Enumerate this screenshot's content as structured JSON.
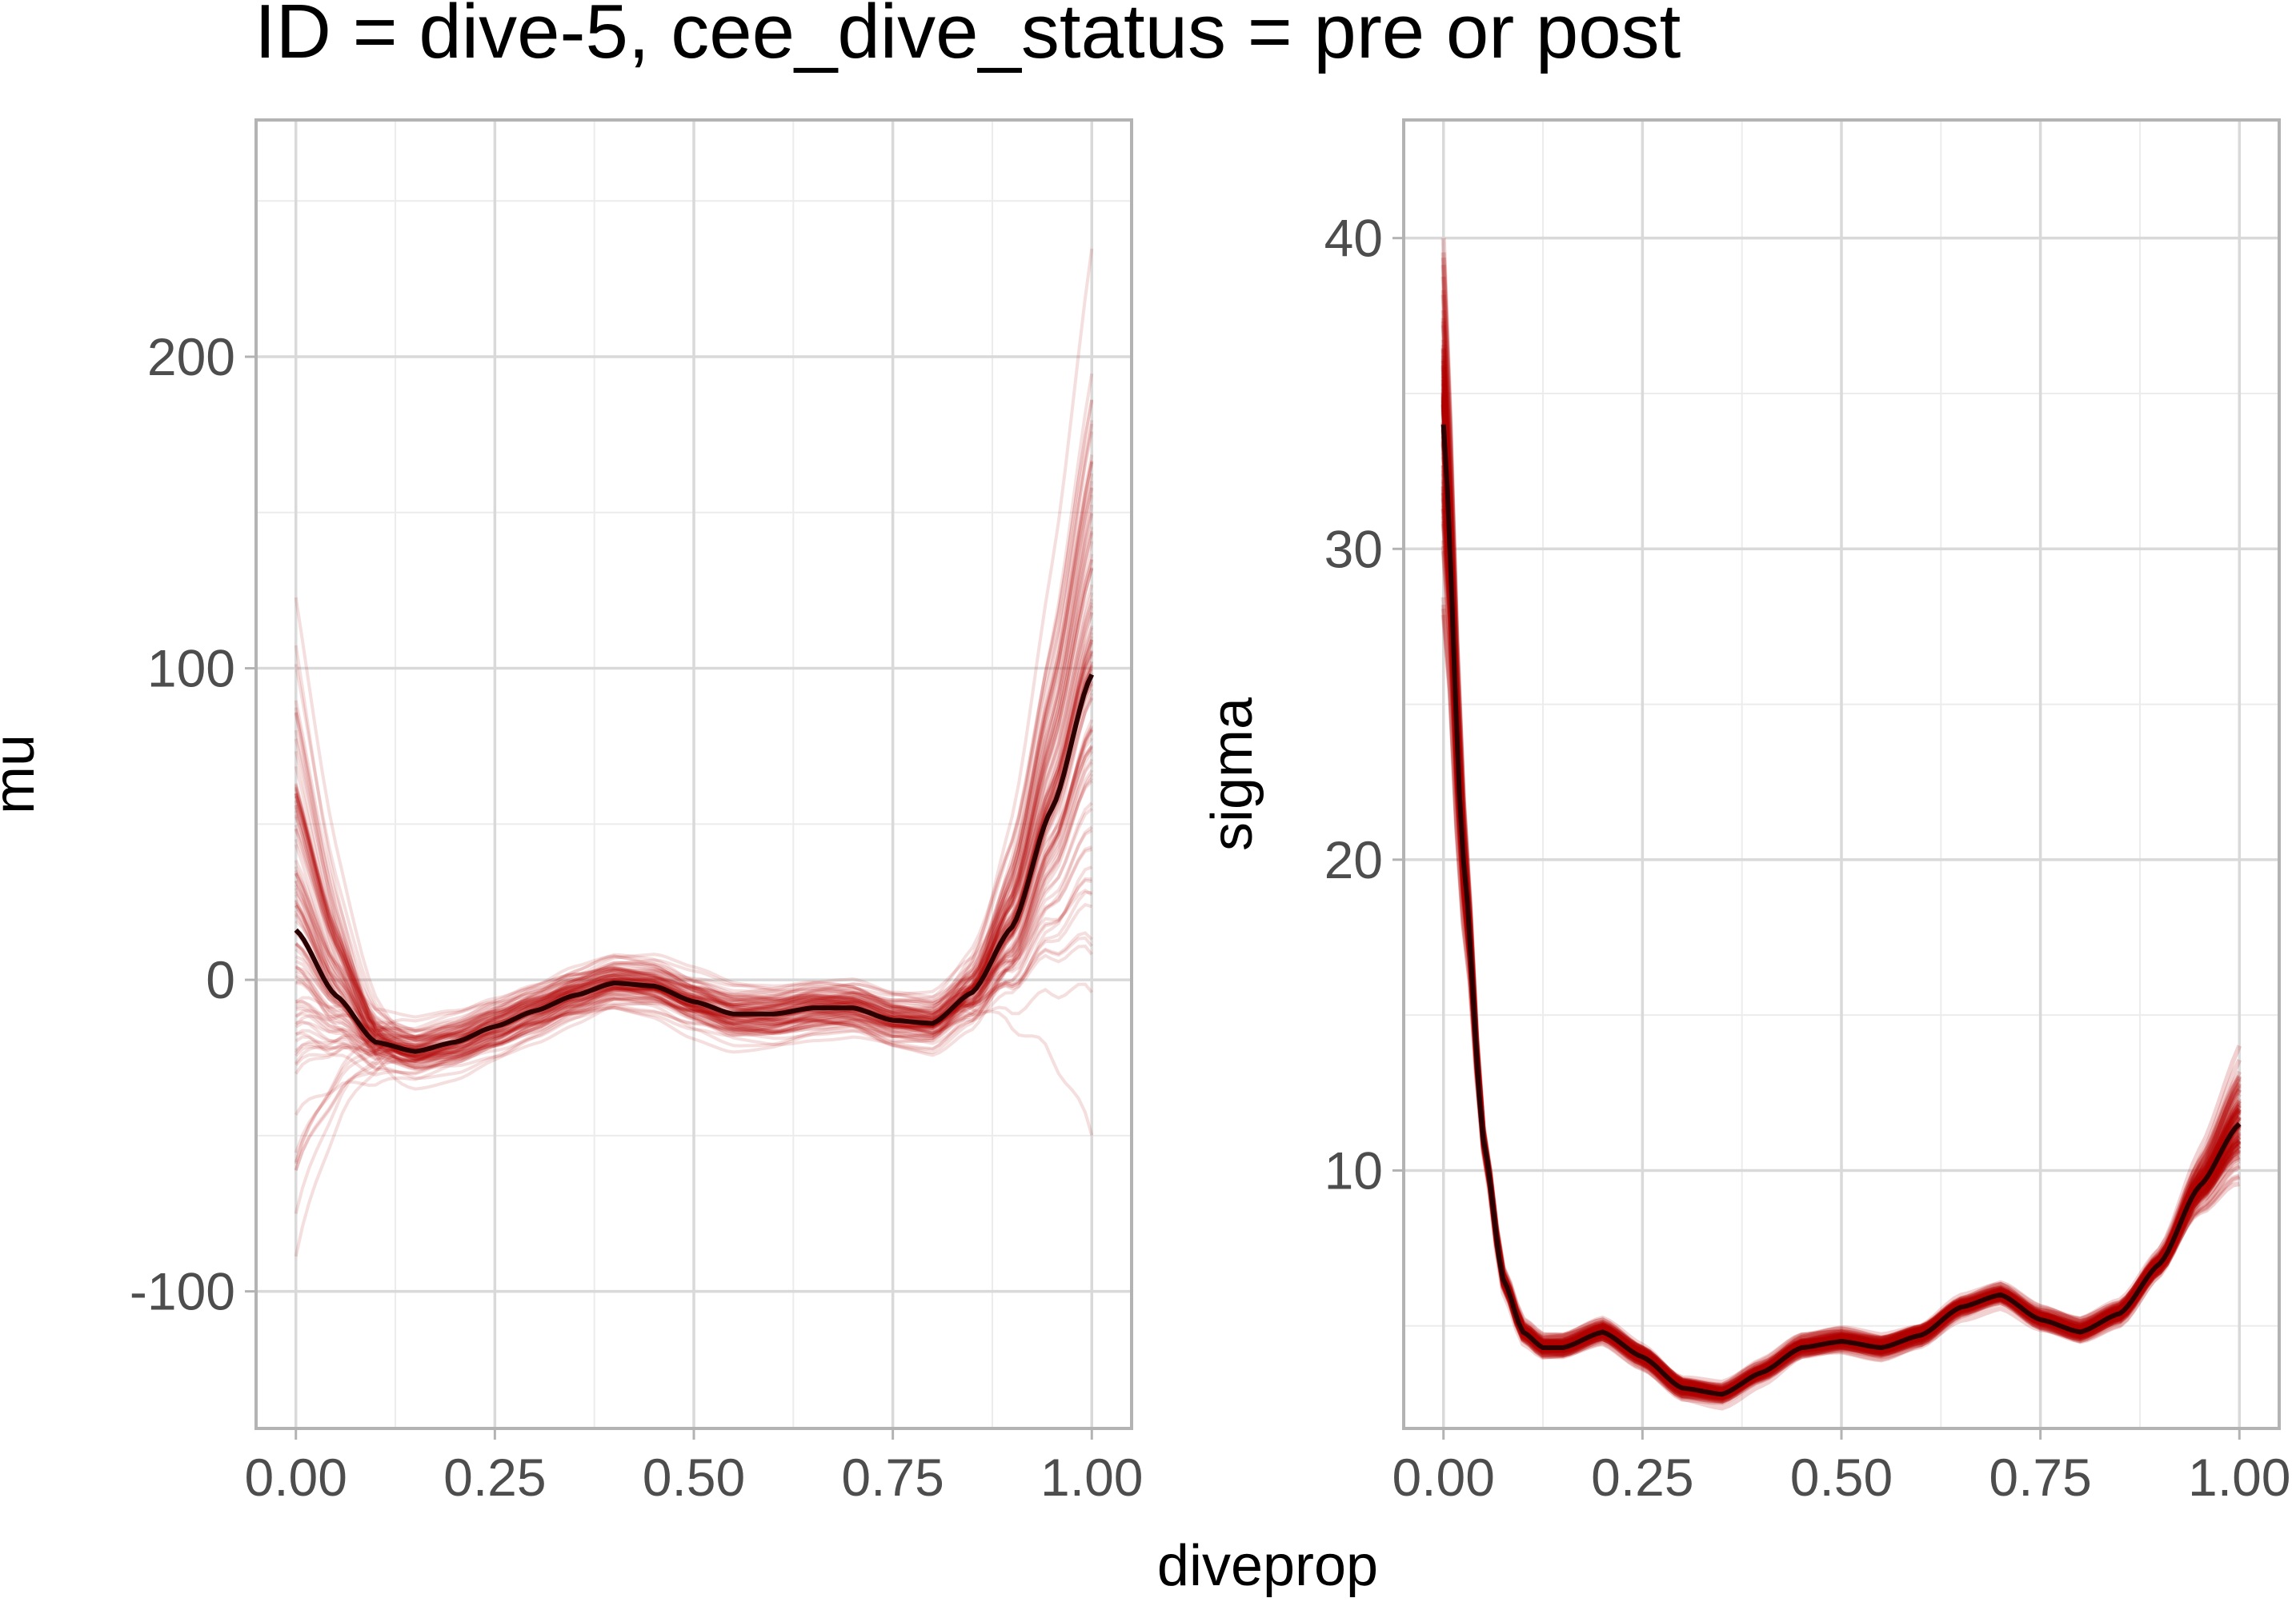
{
  "chart_data": {
    "title": "ID = dive-5, cee_dive_status = pre or post",
    "xlabel": "diveprop",
    "colors": {
      "draw": "#b30000",
      "mean": "#2b0000"
    },
    "panels": [
      {
        "type": "line",
        "ylabel": "mu",
        "xlim": [
          -0.05,
          1.05
        ],
        "ylim": [
          -144,
          276
        ],
        "x_ticks": [
          0,
          0.25,
          0.5,
          0.75,
          1
        ],
        "x_tick_labels": [
          "0.00",
          "0.25",
          "0.50",
          "0.75",
          "1.00"
        ],
        "y_ticks": [
          -100,
          0,
          100,
          200
        ],
        "y_tick_labels": [
          "-100",
          "0",
          "100",
          "200"
        ],
        "y_minor_ticks": [
          -50,
          50,
          150,
          250
        ],
        "grid": true,
        "draws": 100,
        "mean_curve": {
          "x": [
            0,
            0.05,
            0.1,
            0.15,
            0.2,
            0.25,
            0.3,
            0.35,
            0.4,
            0.45,
            0.5,
            0.55,
            0.6,
            0.65,
            0.7,
            0.75,
            0.8,
            0.85,
            0.9,
            0.95,
            1.0
          ],
          "y": [
            16,
            -5,
            -20,
            -23,
            -20,
            -15,
            -10,
            -5,
            -1,
            -2,
            -7,
            -11,
            -11,
            -9,
            -9,
            -13,
            -14,
            -4,
            17,
            55,
            98
          ]
        }
      },
      {
        "type": "line",
        "ylabel": "sigma",
        "xlim": [
          -0.05,
          1.05
        ],
        "ylim": [
          1.7,
          43.8
        ],
        "x_ticks": [
          0,
          0.25,
          0.5,
          0.75,
          1
        ],
        "x_tick_labels": [
          "0.00",
          "0.25",
          "0.50",
          "0.75",
          "1.00"
        ],
        "y_ticks": [
          10,
          20,
          30,
          40
        ],
        "y_tick_labels": [
          "10",
          "20",
          "30",
          "40"
        ],
        "y_minor_ticks": [
          5,
          15,
          25,
          35
        ],
        "grid": true,
        "draws": 100,
        "mean_curve": {
          "x": [
            0,
            0.025,
            0.05,
            0.075,
            0.1,
            0.125,
            0.15,
            0.2,
            0.25,
            0.3,
            0.35,
            0.4,
            0.45,
            0.5,
            0.55,
            0.6,
            0.65,
            0.7,
            0.75,
            0.8,
            0.85,
            0.9,
            0.95,
            1.0
          ],
          "y": [
            34,
            20,
            11,
            6.5,
            4.8,
            4.3,
            4.3,
            4.8,
            4.0,
            3.0,
            2.8,
            3.5,
            4.3,
            4.5,
            4.3,
            4.7,
            5.6,
            6.0,
            5.2,
            4.8,
            5.4,
            7.0,
            9.5,
            11.5
          ]
        }
      }
    ]
  }
}
